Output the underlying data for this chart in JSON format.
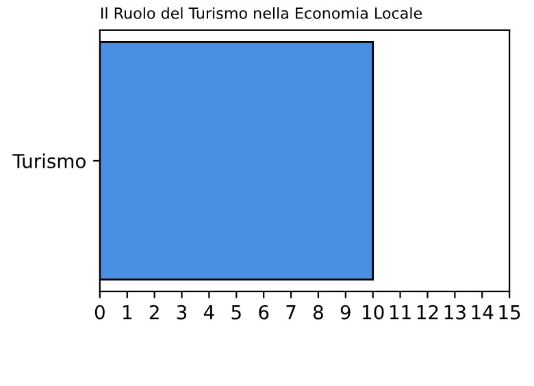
{
  "chart_data": {
    "type": "bar",
    "orientation": "horizontal",
    "title": "Il Ruolo del Turismo nella Economia Locale",
    "categories": [
      "Turismo"
    ],
    "values": [
      10
    ],
    "color": "#4a90e2",
    "xlim": [
      0,
      15
    ],
    "xticks": [
      0,
      1,
      2,
      3,
      4,
      5,
      6,
      7,
      8,
      9,
      10,
      11,
      12,
      13,
      14,
      15
    ],
    "grid": false
  }
}
